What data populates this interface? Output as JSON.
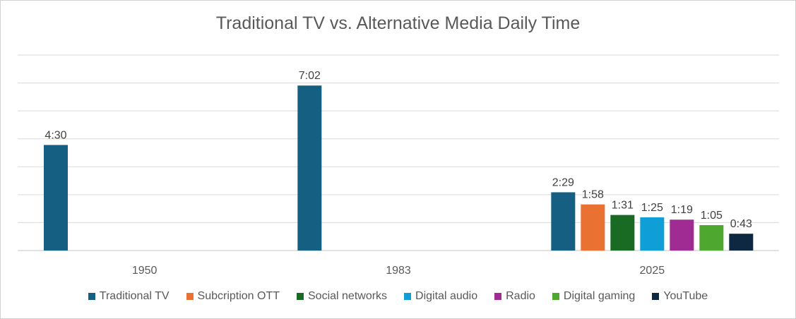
{
  "chart_data": {
    "type": "bar",
    "title": "Traditional TV vs. Alternative Media Daily Time",
    "categories": [
      "1950",
      "1983",
      "2025"
    ],
    "ylim_minutes": [
      0,
      500
    ],
    "grid": true,
    "legend_position": "bottom",
    "series": [
      {
        "name": "Traditional TV",
        "color": "#156082",
        "values": [
          270,
          422,
          149
        ],
        "labels": [
          "4:30",
          "7:02",
          "2:29"
        ]
      },
      {
        "name": "Subcription OTT",
        "color": "#e97132",
        "values": [
          null,
          null,
          118
        ],
        "labels": [
          "",
          "",
          "1:58"
        ]
      },
      {
        "name": "Social networks",
        "color": "#196b24",
        "values": [
          null,
          null,
          91
        ],
        "labels": [
          "",
          "",
          "1:31"
        ]
      },
      {
        "name": "Digital audio",
        "color": "#0f9ed5",
        "values": [
          null,
          null,
          85
        ],
        "labels": [
          "",
          "",
          "1:25"
        ]
      },
      {
        "name": "Radio",
        "color": "#a02b93",
        "values": [
          null,
          null,
          79
        ],
        "labels": [
          "",
          "",
          "1:19"
        ]
      },
      {
        "name": "Digital gaming",
        "color": "#4ea72e",
        "values": [
          null,
          null,
          65
        ],
        "labels": [
          "",
          "",
          "1:05"
        ]
      },
      {
        "name": "YouTube",
        "color": "#0e2841",
        "values": [
          null,
          null,
          43
        ],
        "labels": [
          "",
          "",
          "0:43"
        ]
      }
    ]
  }
}
